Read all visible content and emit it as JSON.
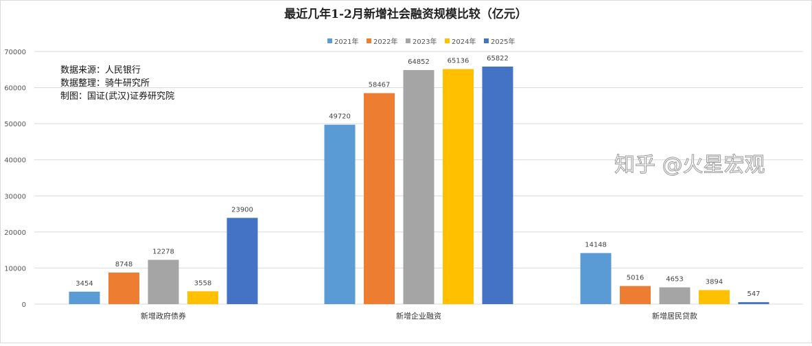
{
  "chart_data": {
    "type": "bar",
    "title": "最近几年1-2月新增社会融资规模比较（亿元）",
    "categories": [
      "新增政府债券",
      "新增企业融资",
      "新增居民贷款"
    ],
    "series": [
      {
        "name": "2021年",
        "color": "#5b9bd5",
        "values": [
          3454,
          49720,
          14148
        ]
      },
      {
        "name": "2022年",
        "color": "#ed7d31",
        "values": [
          8748,
          58467,
          5016
        ]
      },
      {
        "name": "2023年",
        "color": "#a5a5a5",
        "values": [
          12278,
          64852,
          4653
        ]
      },
      {
        "name": "2024年",
        "color": "#ffc000",
        "values": [
          3558,
          65136,
          3894
        ]
      },
      {
        "name": "2025年",
        "color": "#4472c4",
        "values": [
          23900,
          65822,
          547
        ]
      }
    ],
    "ylim": [
      0,
      70000
    ],
    "yticks": [
      0,
      10000,
      20000,
      30000,
      40000,
      50000,
      60000,
      70000
    ],
    "grid": true,
    "legend": "top-center",
    "notes": [
      "数据来源：人民银行",
      "数据整理：骑牛研究所",
      "制图：国证(武汉)证券研究院"
    ],
    "watermark": "知乎 @火星宏观"
  }
}
